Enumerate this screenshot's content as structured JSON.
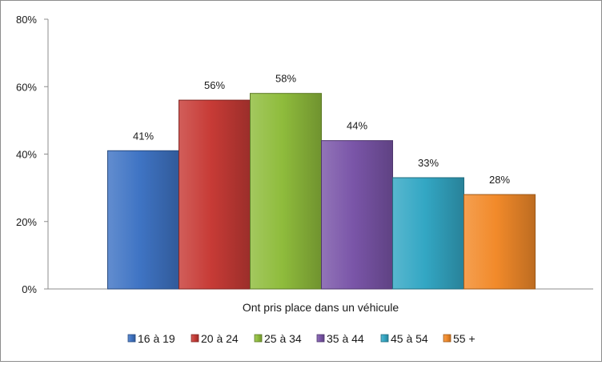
{
  "chart_data": {
    "type": "bar",
    "categories": [
      "Ont pris place dans un véhicule"
    ],
    "series": [
      {
        "name": "16 à 19",
        "values": [
          41
        ],
        "color": "#3f74c4"
      },
      {
        "name": "20 à 24",
        "values": [
          56
        ],
        "color": "#c73b36"
      },
      {
        "name": "25 à 34",
        "values": [
          58
        ],
        "color": "#8fbc3c"
      },
      {
        "name": "35 à 44",
        "values": [
          44
        ],
        "color": "#7a55a8"
      },
      {
        "name": "45 à 54",
        "values": [
          33
        ],
        "color": "#33a7c4"
      },
      {
        "name": "55 +",
        "values": [
          28
        ],
        "color": "#f28a2a"
      }
    ],
    "data_labels": [
      "41%",
      "56%",
      "58%",
      "44%",
      "33%",
      "28%"
    ],
    "title": "",
    "xlabel": "",
    "ylabel": "",
    "ylim": [
      0,
      80
    ],
    "yticks": [
      0,
      20,
      40,
      60,
      80
    ],
    "ytick_labels": [
      "0%",
      "20%",
      "40%",
      "60%",
      "80%"
    ],
    "grid": false,
    "legend_position": "bottom"
  }
}
